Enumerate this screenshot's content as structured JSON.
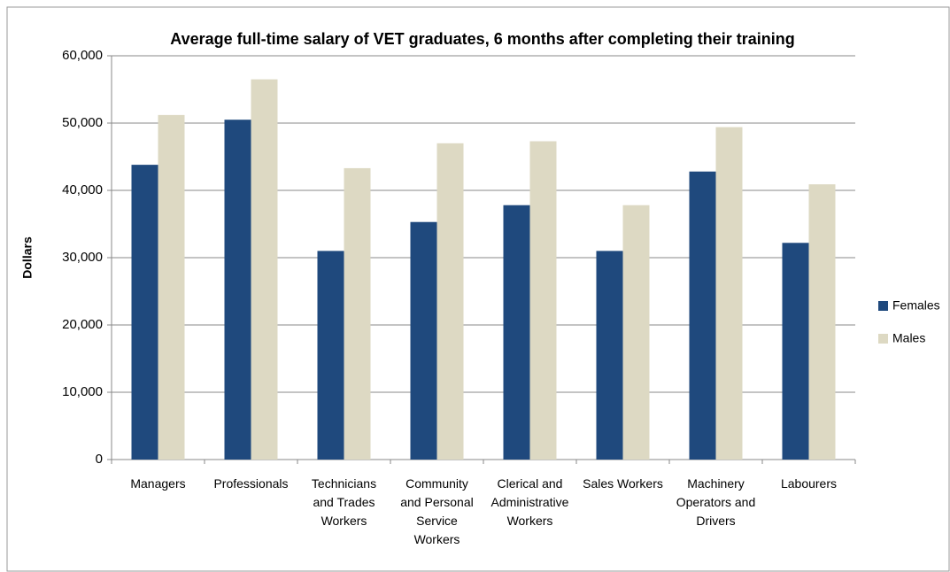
{
  "chart_data": {
    "type": "bar",
    "title": "Average full-time salary of VET graduates, 6 months after completing their training",
    "y_label": "Dollars",
    "categories": [
      "Managers",
      "Professionals",
      "Technicians and Trades Workers",
      "Community and Personal Service Workers",
      "Clerical and Administrative Workers",
      "Sales Workers",
      "Machinery Operators and Drivers",
      "Labourers"
    ],
    "series": [
      {
        "name": "Females",
        "color": "#1f497d",
        "values": [
          43800,
          50500,
          31000,
          35300,
          37800,
          31000,
          42800,
          32200
        ]
      },
      {
        "name": "Males",
        "color": "#ddd9c3",
        "values": [
          51200,
          56500,
          43300,
          47000,
          47300,
          37800,
          49400,
          40900
        ]
      }
    ],
    "ylim": [
      0,
      60000
    ],
    "yticks": [
      0,
      {
        "value": 10000,
        "label": "10,000"
      },
      {
        "value": 20000,
        "label": "20,000"
      },
      {
        "value": 30000,
        "label": "30,000"
      },
      {
        "value": 40000,
        "label": "40,000"
      },
      {
        "value": 50000,
        "label": "50,000"
      },
      {
        "value": 60000,
        "label": "60,000"
      }
    ],
    "grid": true,
    "legend": "right"
  }
}
